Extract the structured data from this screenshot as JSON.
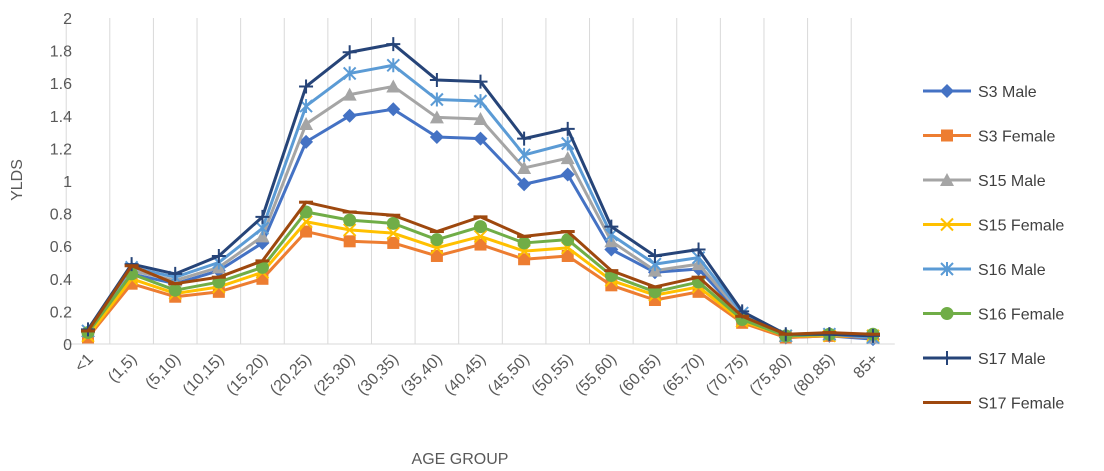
{
  "chart_data": {
    "type": "line",
    "xlabel": "AGE GROUP",
    "ylabel": "YLDS",
    "ylim": [
      0,
      2
    ],
    "yticks": [
      "0",
      "0.2",
      "0.4",
      "0.6",
      "0.8",
      "1",
      "1.2",
      "1.4",
      "1.6",
      "1.8",
      "2"
    ],
    "grid": "vertical",
    "legend": "right",
    "categories": [
      "<1",
      "(1,5)",
      "(5,10)",
      "(10,15)",
      "(15,20)",
      "(20,25)",
      "(25,30)",
      "(30,35)",
      "(35,40)",
      "(40,45)",
      "(45,50)",
      "(50,55)",
      "(55,60)",
      "(60,65)",
      "(65,70)",
      "(70,75)",
      "(75,80)",
      "(80,85)",
      "85+"
    ],
    "series": [
      {
        "name": "S3 Male",
        "color": "#4472C4",
        "marker": "diamond",
        "values": [
          0.07,
          0.43,
          0.37,
          0.45,
          0.62,
          1.24,
          1.4,
          1.44,
          1.27,
          1.26,
          0.98,
          1.04,
          0.58,
          0.44,
          0.46,
          0.17,
          0.04,
          0.05,
          0.03
        ]
      },
      {
        "name": "S3 Female",
        "color": "#ED7D31",
        "marker": "square",
        "values": [
          0.04,
          0.37,
          0.29,
          0.32,
          0.4,
          0.69,
          0.63,
          0.62,
          0.54,
          0.61,
          0.52,
          0.54,
          0.36,
          0.27,
          0.32,
          0.13,
          0.04,
          0.05,
          0.04
        ]
      },
      {
        "name": "S15 Male",
        "color": "#A5A5A5",
        "marker": "triangle",
        "values": [
          0.08,
          0.45,
          0.39,
          0.47,
          0.66,
          1.35,
          1.53,
          1.58,
          1.39,
          1.38,
          1.08,
          1.14,
          0.63,
          0.45,
          0.49,
          0.18,
          0.05,
          0.06,
          0.04
        ]
      },
      {
        "name": "S15 Female",
        "color": "#FFC000",
        "marker": "x",
        "values": [
          0.05,
          0.4,
          0.31,
          0.35,
          0.44,
          0.75,
          0.7,
          0.68,
          0.59,
          0.66,
          0.57,
          0.59,
          0.39,
          0.3,
          0.35,
          0.14,
          0.05,
          0.05,
          0.05
        ]
      },
      {
        "name": "S16 Male",
        "color": "#5B9BD5",
        "marker": "asterisk",
        "values": [
          0.08,
          0.47,
          0.41,
          0.5,
          0.71,
          1.46,
          1.66,
          1.71,
          1.5,
          1.49,
          1.16,
          1.23,
          0.67,
          0.49,
          0.53,
          0.19,
          0.05,
          0.06,
          0.04
        ]
      },
      {
        "name": "S16 Female",
        "color": "#70AD47",
        "marker": "circle",
        "values": [
          0.07,
          0.43,
          0.33,
          0.38,
          0.47,
          0.81,
          0.76,
          0.74,
          0.64,
          0.72,
          0.62,
          0.64,
          0.42,
          0.32,
          0.38,
          0.15,
          0.05,
          0.06,
          0.06
        ]
      },
      {
        "name": "S17 Male",
        "color": "#264478",
        "marker": "plus",
        "values": [
          0.09,
          0.49,
          0.43,
          0.54,
          0.78,
          1.58,
          1.79,
          1.84,
          1.62,
          1.61,
          1.26,
          1.32,
          0.72,
          0.54,
          0.58,
          0.2,
          0.06,
          0.06,
          0.05
        ]
      },
      {
        "name": "S17 Female",
        "color": "#9E480E",
        "marker": "dash",
        "values": [
          0.08,
          0.48,
          0.37,
          0.41,
          0.51,
          0.87,
          0.81,
          0.79,
          0.69,
          0.78,
          0.66,
          0.69,
          0.45,
          0.35,
          0.41,
          0.17,
          0.06,
          0.07,
          0.06
        ]
      }
    ]
  }
}
